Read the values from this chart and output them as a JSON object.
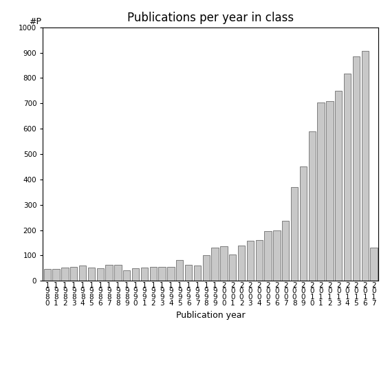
{
  "title": "Publications per year in class",
  "xlabel": "Publication year",
  "ylabel": "#P",
  "bar_color": "#c8c8c8",
  "bar_edgecolor": "#555555",
  "ylim": [
    0,
    1000
  ],
  "yticks": [
    0,
    100,
    200,
    300,
    400,
    500,
    600,
    700,
    800,
    900,
    1000
  ],
  "categories": [
    "1\n9\n8\n0",
    "1\n9\n8\n1",
    "1\n9\n8\n2",
    "1\n9\n8\n3",
    "1\n9\n8\n4",
    "1\n9\n8\n5",
    "1\n9\n8\n6",
    "1\n9\n8\n7",
    "1\n9\n8\n8",
    "1\n9\n8\n9",
    "1\n9\n9\n0",
    "1\n9\n9\n1",
    "1\n9\n9\n2",
    "1\n9\n9\n3",
    "1\n9\n9\n4",
    "1\n9\n9\n5",
    "1\n9\n9\n6",
    "1\n9\n9\n7",
    "1\n9\n9\n8",
    "1\n9\n9\n9",
    "2\n0\n0\n0",
    "2\n0\n0\n1",
    "2\n0\n0\n2",
    "2\n0\n0\n3",
    "2\n0\n0\n4",
    "2\n0\n0\n5",
    "2\n0\n0\n6",
    "2\n0\n0\n7",
    "2\n0\n0\n8",
    "2\n0\n0\n9",
    "2\n0\n1\n0",
    "2\n0\n1\n1",
    "2\n0\n1\n2",
    "2\n0\n1\n3",
    "2\n0\n1\n4",
    "2\n0\n1\n5",
    "2\n0\n1\n6",
    "2\n0\n1\n7"
  ],
  "values": [
    48,
    48,
    53,
    55,
    60,
    53,
    50,
    62,
    62,
    42,
    50,
    52,
    55,
    55,
    55,
    82,
    63,
    60,
    100,
    132,
    135,
    105,
    140,
    158,
    160,
    195,
    200,
    238,
    370,
    452,
    590,
    703,
    710,
    750,
    818,
    885,
    908,
    130
  ],
  "background_color": "#ffffff",
  "title_fontsize": 12,
  "axis_fontsize": 9,
  "tick_fontsize": 7.5
}
